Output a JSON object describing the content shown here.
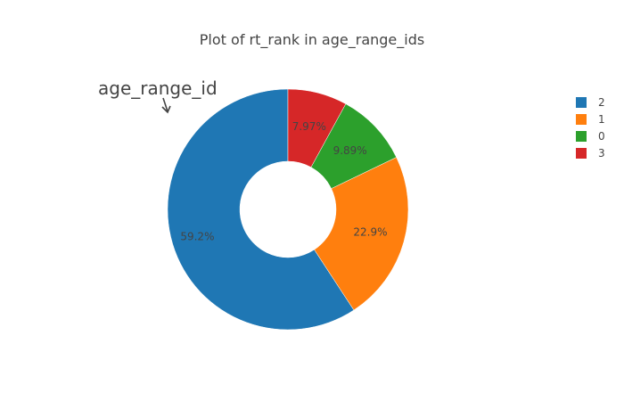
{
  "chart_data": {
    "type": "pie",
    "hole": true,
    "title": "Plot of rt_rank in age_range_ids",
    "annotation": "age_range_id",
    "slices": [
      {
        "label": "2",
        "percent": 59.2,
        "text": "59.2%",
        "color": "#1f77b4"
      },
      {
        "label": "1",
        "percent": 22.9,
        "text": "22.9%",
        "color": "#ff7f0e"
      },
      {
        "label": "0",
        "percent": 9.89,
        "text": "9.89%",
        "color": "#2ca02c"
      },
      {
        "label": "3",
        "percent": 7.97,
        "text": "7.97%",
        "color": "#d62728"
      }
    ],
    "legend": {
      "placement": "top-right",
      "items": [
        "2",
        "1",
        "0",
        "3"
      ]
    }
  }
}
